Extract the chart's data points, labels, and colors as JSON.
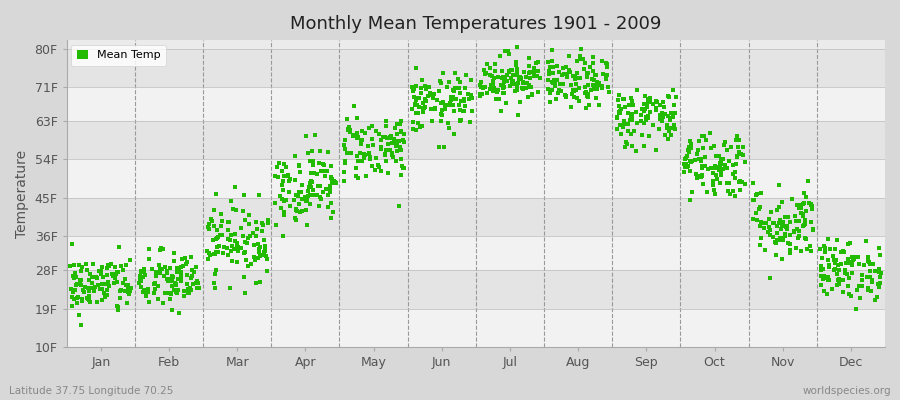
{
  "title": "Monthly Mean Temperatures 1901 - 2009",
  "ylabel": "Temperature",
  "subtitle_left": "Latitude 37.75 Longitude 70.25",
  "subtitle_right": "worldspecies.org",
  "legend_label": "Mean Temp",
  "fig_bg_color": "#d8d8d8",
  "plot_bg_color": "#ebebeb",
  "band_color_light": "#f2f2f2",
  "band_color_dark": "#e4e4e4",
  "dot_color": "#22bb00",
  "yticks": [
    10,
    19,
    28,
    36,
    45,
    54,
    63,
    71,
    80
  ],
  "ylim": [
    10,
    82
  ],
  "months": [
    "Jan",
    "Feb",
    "Mar",
    "Apr",
    "May",
    "Jun",
    "Jul",
    "Aug",
    "Sep",
    "Oct",
    "Nov",
    "Dec"
  ],
  "num_years": 109,
  "seed": 42,
  "mean_temps_f": [
    24.5,
    25.5,
    35,
    48,
    57,
    67,
    73,
    72,
    64,
    53,
    39,
    28
  ],
  "month_spreads": [
    3.5,
    3.5,
    4.5,
    4.5,
    4.0,
    3.5,
    3.0,
    3.0,
    3.5,
    4.0,
    4.5,
    3.5
  ]
}
